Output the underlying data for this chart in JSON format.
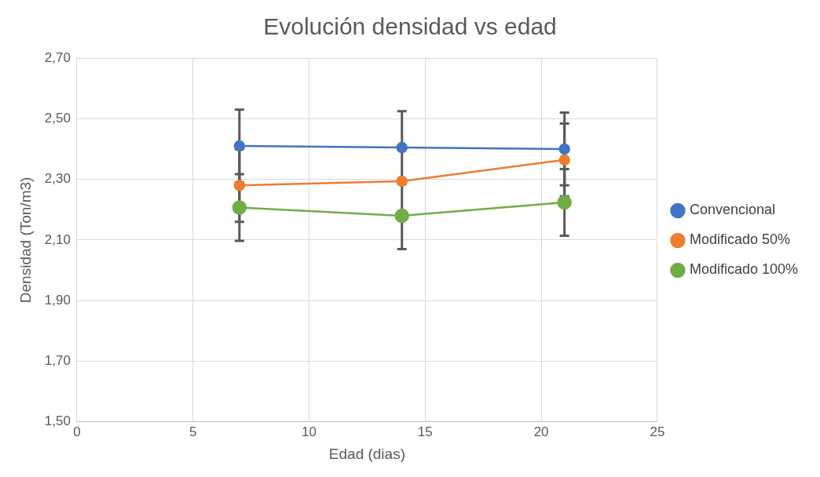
{
  "chart_data": {
    "type": "line",
    "title": "Evolución densidad vs edad",
    "xlabel": "Edad (dias)",
    "ylabel": "Densidad (Ton/m3)",
    "x": [
      7,
      14,
      21
    ],
    "series": [
      {
        "name": "Convencional",
        "color": "#4472c4",
        "values": [
          2.41,
          2.405,
          2.4
        ],
        "errors": [
          0.12,
          0.12,
          0.12
        ]
      },
      {
        "name": "Modificado 50%",
        "color": "#ed7d31",
        "values": [
          2.28,
          2.294,
          2.364
        ],
        "errors": [
          0.12,
          null,
          0.12
        ]
      },
      {
        "name": "Modificado 100%",
        "color": "#70ad47",
        "values": [
          2.207,
          2.18,
          2.224
        ],
        "errors": [
          0.11,
          0.11,
          0.11
        ]
      }
    ],
    "xlim": [
      0,
      25
    ],
    "xticks": [
      0,
      5,
      10,
      15,
      20,
      25
    ],
    "ylim": [
      1.5,
      2.7
    ],
    "yticks": [
      {
        "value": 1.5,
        "label": "1,50"
      },
      {
        "value": 1.7,
        "label": "1,70"
      },
      {
        "value": 1.9,
        "label": "1,90"
      },
      {
        "value": 2.1,
        "label": "2,10"
      },
      {
        "value": 2.3,
        "label": "2,30"
      },
      {
        "value": 2.5,
        "label": "2,50"
      },
      {
        "value": 2.7,
        "label": "2,70"
      }
    ],
    "grid": true,
    "legend": "right",
    "marker": "circle",
    "line_style": "solid"
  }
}
